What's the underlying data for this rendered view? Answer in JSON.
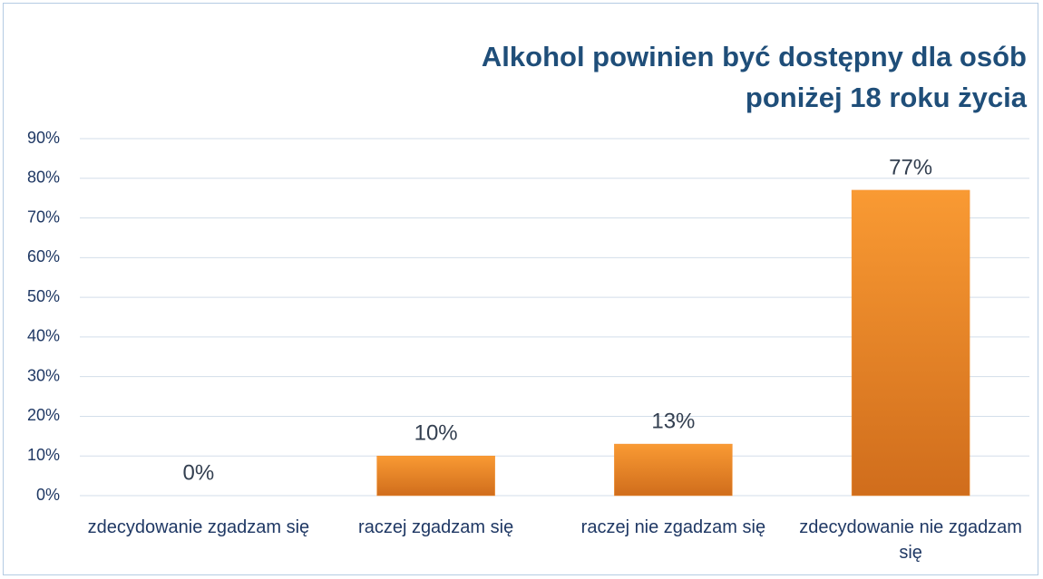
{
  "chart_data": {
    "type": "bar",
    "title": "Alkohol powinien być dostępny dla osób poniżej 18 roku życia",
    "categories": [
      "zdecydowanie zgadzam się",
      "raczej zgadzam się",
      "raczej nie zgadzam się",
      "zdecydowanie nie zgadzam się"
    ],
    "values": [
      0,
      10,
      13,
      77
    ],
    "value_labels": [
      "0%",
      "10%",
      "13%",
      "77%"
    ],
    "color": "#f39130",
    "ylim": [
      0,
      90
    ],
    "yticks": [
      {
        "value": 0,
        "label": "0%"
      },
      {
        "value": 10,
        "label": "10%"
      },
      {
        "value": 20,
        "label": "20%"
      },
      {
        "value": 30,
        "label": "30%"
      },
      {
        "value": 40,
        "label": "40%"
      },
      {
        "value": 50,
        "label": "50%"
      },
      {
        "value": 60,
        "label": "60%"
      },
      {
        "value": 70,
        "label": "70%"
      },
      {
        "value": 80,
        "label": "80%"
      },
      {
        "value": 90,
        "label": "90%"
      }
    ],
    "grid": true
  }
}
